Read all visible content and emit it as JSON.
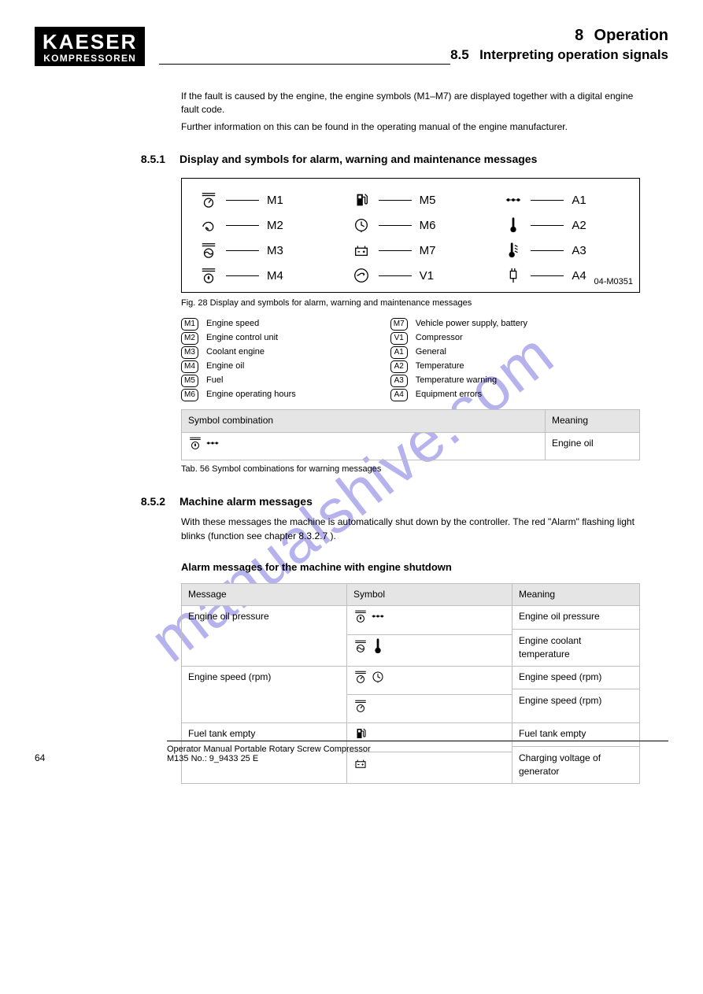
{
  "watermark": "manualshive.com",
  "header": {
    "logo_line1": "KAESER",
    "logo_line2": "KOMPRESSOREN",
    "chapter_num": "8",
    "chapter_title": "Operation",
    "section_num": "8.5",
    "section_title": "Interpreting operation signals"
  },
  "intro": {
    "p1": "If the fault is caused by the engine, the engine symbols (M1–M7) are displayed together with a digital engine fault code.",
    "p2": "Further information on this can be found in the operating manual of the engine manufacturer."
  },
  "section851": {
    "num": "8.5.1",
    "title": "Display and symbols for alarm, warning and maintenance messages"
  },
  "panel": {
    "tag": "04-M0351",
    "items": [
      {
        "icon": "gauge-over",
        "label": "M1"
      },
      {
        "icon": "fuel-pump",
        "label": "M5"
      },
      {
        "icon": "dots-line",
        "label": "A1"
      },
      {
        "icon": "swirl",
        "label": "M2"
      },
      {
        "icon": "clock",
        "label": "M6"
      },
      {
        "icon": "thermo",
        "label": "A2"
      },
      {
        "icon": "wave-over",
        "label": "M3"
      },
      {
        "icon": "battery",
        "label": "M7"
      },
      {
        "icon": "thermo-warn",
        "label": "A3"
      },
      {
        "icon": "drop-over",
        "label": "M4"
      },
      {
        "icon": "circle-arrow",
        "label": "V1"
      },
      {
        "icon": "plug",
        "label": "A4"
      }
    ]
  },
  "fig_caption": "Fig. 28    Display and symbols for alarm, warning and maintenance messages",
  "legend": {
    "left": [
      {
        "key": "M1",
        "text": "Engine speed"
      },
      {
        "key": "M2",
        "text": "Engine control unit"
      },
      {
        "key": "M3",
        "text": "Coolant engine"
      },
      {
        "key": "M4",
        "text": "Engine oil"
      },
      {
        "key": "M5",
        "text": "Fuel"
      },
      {
        "key": "M6",
        "text": "Engine operating hours"
      }
    ],
    "right": [
      {
        "key": "M7",
        "text": "Vehicle power supply, battery"
      },
      {
        "key": "V1",
        "text": "Compressor"
      },
      {
        "key": "A1",
        "text": "General"
      },
      {
        "key": "A2",
        "text": "Temperature"
      },
      {
        "key": "A3",
        "text": "Temperature warning"
      },
      {
        "key": "A4",
        "text": "Equipment errors"
      }
    ]
  },
  "table1": {
    "headers": [
      "Symbol combination",
      "Meaning"
    ],
    "row": {
      "icons": [
        "drop-over",
        "dots-line"
      ],
      "meaning": "Engine oil"
    },
    "caption": "Tab. 56     Symbol combinations for warning messages"
  },
  "section852": {
    "num": "8.5.2",
    "title": "Machine alarm messages",
    "p1": "With these messages the machine is automatically shut down by the controller. The red \"Alarm\" flashing light blinks (function see chapter ",
    "link1": "8.3.2.7",
    "p1b": ").",
    "subhead": "Alarm messages for the machine with engine shutdown"
  },
  "table2": {
    "headers": [
      "Message",
      "Symbol",
      "Meaning"
    ],
    "rows": [
      {
        "message": "Engine oil pressure",
        "symbols": [
          [
            "drop-over",
            "dots-line"
          ],
          [
            "wave-over",
            "thermo"
          ]
        ],
        "meanings": [
          "Engine oil pressure",
          "Engine coolant temperature"
        ]
      },
      {
        "message": "Engine speed (rpm)",
        "symbols": [
          [
            "gauge-over",
            "clock"
          ],
          [
            "gauge-over"
          ]
        ],
        "meanings": [
          "Engine speed (rpm)",
          "Engine speed (rpm)"
        ]
      },
      {
        "message": "Fuel tank empty",
        "symbols": [
          [
            "fuel-pump"
          ],
          [
            "battery"
          ]
        ],
        "meanings": [
          "Fuel tank empty",
          "Charging voltage of generator"
        ]
      }
    ],
    "caption": ""
  },
  "footer": {
    "page": "64",
    "title": "Operator Manual    Portable Rotary Screw Compressor",
    "sub": "M135   No.: 9_9433 25 E"
  }
}
